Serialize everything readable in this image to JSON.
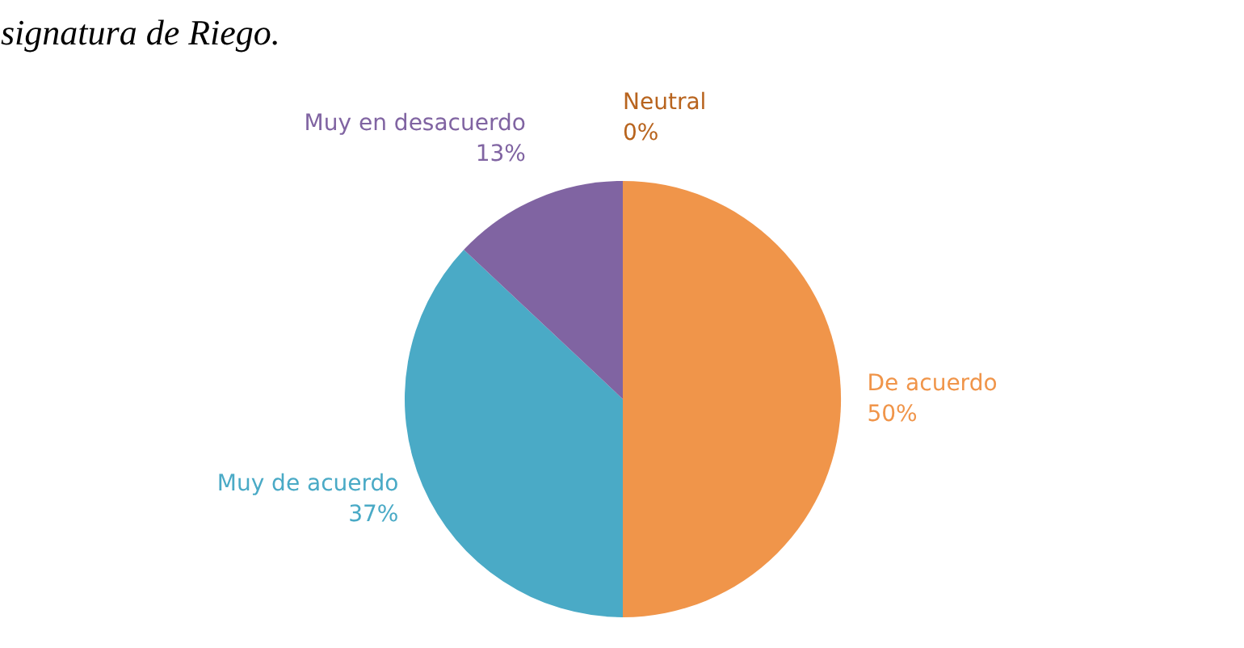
{
  "chart_data": {
    "type": "pie",
    "title": "signatura de Riego.",
    "categories": [
      "De acuerdo",
      "Muy de acuerdo",
      "Muy en desacuerdo",
      "Neutral"
    ],
    "values": [
      50,
      37,
      13,
      0
    ],
    "colors": [
      "#f0954a",
      "#4aaac6",
      "#8064a2",
      "#b8641e"
    ],
    "value_labels": [
      "50%",
      "37%",
      "13%",
      "0%"
    ],
    "legend": false
  }
}
